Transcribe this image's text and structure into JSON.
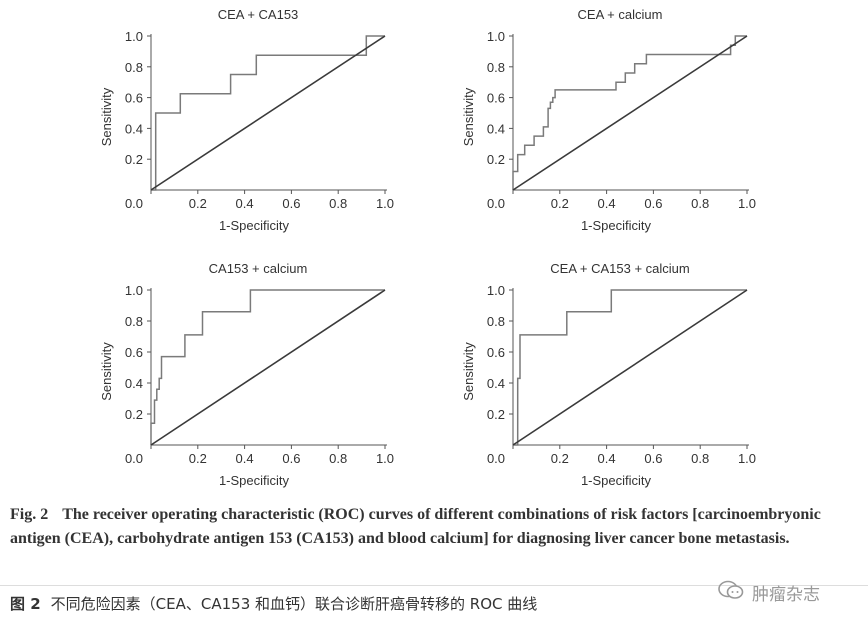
{
  "figure": {
    "caption_label": "Fig. 2",
    "caption_text": "The receiver operating characteristic (ROC) curves of different combinations of risk factors [carcinoembryonic antigen (CEA), carbohydrate antigen 153 (CA153) and blood calcium] for diagnosing liver cancer bone metastasis.",
    "caption_zh_label": "图 2",
    "caption_zh_text": "不同危险因素（CEA、CA153 和血钙）联合诊断肝癌骨转移的 ROC 曲线",
    "watermark_text": "肿瘤杂志"
  },
  "colors": {
    "curve": "#7a7a7a",
    "reference": "#3a3a3a",
    "axis": "#555555",
    "text": "#333333"
  },
  "chart_data": [
    {
      "type": "line",
      "title": "CEA + CA153",
      "xlabel": "1-Specificity",
      "ylabel": "Sensitivity",
      "xlim": [
        0,
        1
      ],
      "ylim": [
        0,
        1
      ],
      "x_ticks": [
        "0.0",
        "0.2",
        "0.4",
        "0.6",
        "0.8",
        "1.0"
      ],
      "y_ticks": [
        "0.2",
        "0.4",
        "0.6",
        "0.8",
        "1.0"
      ],
      "grid": false,
      "series": [
        {
          "x": [
            0,
            0.02,
            0.02,
            0.02,
            0.02,
            0.125,
            0.125,
            0.34,
            0.34,
            0.45,
            0.45,
            0.92,
            0.92,
            1
          ],
          "y": [
            0,
            0,
            0.37,
            0.37,
            0.5,
            0.5,
            0.625,
            0.625,
            0.75,
            0.75,
            0.875,
            0.875,
            1,
            1
          ]
        },
        {
          "x": [
            0,
            1
          ],
          "y": [
            0,
            1
          ]
        }
      ]
    },
    {
      "type": "line",
      "title": "CEA + calcium",
      "xlabel": "1-Specificity",
      "ylabel": "Sensitivity",
      "xlim": [
        0,
        1
      ],
      "ylim": [
        0,
        1
      ],
      "x_ticks": [
        "0.0",
        "0.2",
        "0.4",
        "0.6",
        "0.8",
        "1.0"
      ],
      "y_ticks": [
        "0.2",
        "0.4",
        "0.6",
        "0.8",
        "1.0"
      ],
      "grid": false,
      "series": [
        {
          "x": [
            0,
            0,
            0.02,
            0.02,
            0.05,
            0.05,
            0.09,
            0.09,
            0.13,
            0.13,
            0.15,
            0.15,
            0.16,
            0.16,
            0.17,
            0.17,
            0.18,
            0.18,
            0.44,
            0.44,
            0.48,
            0.48,
            0.52,
            0.52,
            0.57,
            0.57,
            0.93,
            0.93,
            0.95,
            0.95,
            1
          ],
          "y": [
            0,
            0.12,
            0.12,
            0.23,
            0.23,
            0.29,
            0.29,
            0.35,
            0.35,
            0.41,
            0.41,
            0.53,
            0.53,
            0.57,
            0.57,
            0.6,
            0.6,
            0.65,
            0.65,
            0.7,
            0.7,
            0.76,
            0.76,
            0.82,
            0.82,
            0.88,
            0.88,
            0.94,
            0.94,
            1,
            1
          ]
        },
        {
          "x": [
            0,
            1
          ],
          "y": [
            0,
            1
          ]
        }
      ]
    },
    {
      "type": "line",
      "title": "CA153 + calcium",
      "xlabel": "1-Specificity",
      "ylabel": "Sensitivity",
      "xlim": [
        0,
        1
      ],
      "ylim": [
        0,
        1
      ],
      "x_ticks": [
        "0.0",
        "0.2",
        "0.4",
        "0.6",
        "0.8",
        "1.0"
      ],
      "y_ticks": [
        "0.2",
        "0.4",
        "0.6",
        "0.8",
        "1.0"
      ],
      "grid": false,
      "series": [
        {
          "x": [
            0,
            0,
            0.015,
            0.015,
            0.025,
            0.025,
            0.035,
            0.035,
            0.045,
            0.045,
            0.145,
            0.145,
            0.22,
            0.22,
            0.425,
            0.425,
            1
          ],
          "y": [
            0,
            0.14,
            0.14,
            0.29,
            0.29,
            0.36,
            0.36,
            0.43,
            0.43,
            0.57,
            0.57,
            0.71,
            0.71,
            0.86,
            0.86,
            1,
            1
          ]
        },
        {
          "x": [
            0,
            1
          ],
          "y": [
            0,
            1
          ]
        }
      ]
    },
    {
      "type": "line",
      "title": "CEA + CA153 + calcium",
      "xlabel": "1-Specificity",
      "ylabel": "Sensitivity",
      "xlim": [
        0,
        1
      ],
      "ylim": [
        0,
        1
      ],
      "x_ticks": [
        "0.0",
        "0.2",
        "0.4",
        "0.6",
        "0.8",
        "1.0"
      ],
      "y_ticks": [
        "0.2",
        "0.4",
        "0.6",
        "0.8",
        "1.0"
      ],
      "grid": false,
      "series": [
        {
          "x": [
            0,
            0.02,
            0.02,
            0.03,
            0.03,
            0.23,
            0.23,
            0.42,
            0.42,
            1
          ],
          "y": [
            0,
            0,
            0.43,
            0.43,
            0.71,
            0.71,
            0.86,
            0.86,
            1,
            1
          ]
        },
        {
          "x": [
            0,
            1
          ],
          "y": [
            0,
            1
          ]
        }
      ]
    }
  ]
}
